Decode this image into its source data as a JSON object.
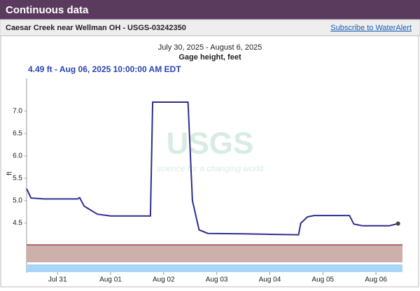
{
  "header": {
    "title": "Continuous data",
    "site": "Caesar Creek near Wellman OH - USGS-03242350",
    "link": "Subscribe to WaterAlert"
  },
  "watermark": {
    "logo": "USGS",
    "tagline": "science for a changing world"
  },
  "chart_data": {
    "type": "line",
    "title": "July 30, 2025 - August 6, 2025",
    "subtitle": "Gage height, feet",
    "annotation": "4.49 ft - Aug 06, 2025 10:00:00 AM EDT",
    "y_label": "ft",
    "color": "#2e2e8f",
    "grid": false,
    "x": [
      "2025-07-30T10:00",
      "2025-07-30T12:00",
      "2025-07-30T18:00",
      "2025-07-31T00:00",
      "2025-07-31T09:00",
      "2025-07-31T10:00",
      "2025-07-31T12:00",
      "2025-07-31T18:00",
      "2025-08-01T00:00",
      "2025-08-01T18:00",
      "2025-08-01T19:00",
      "2025-08-02T11:00",
      "2025-08-02T13:00",
      "2025-08-02T16:00",
      "2025-08-02T20:00",
      "2025-08-03T12:00",
      "2025-08-04T00:00",
      "2025-08-04T13:00",
      "2025-08-04T14:00",
      "2025-08-04T17:00",
      "2025-08-04T20:00",
      "2025-08-05T12:00",
      "2025-08-05T14:00",
      "2025-08-05T18:00",
      "2025-08-06T06:00",
      "2025-08-06T10:00"
    ],
    "values": [
      5.27,
      5.06,
      5.04,
      5.04,
      5.04,
      5.07,
      4.88,
      4.7,
      4.66,
      4.66,
      7.2,
      7.2,
      5.0,
      4.35,
      4.27,
      4.26,
      4.25,
      4.24,
      4.5,
      4.64,
      4.67,
      4.67,
      4.48,
      4.44,
      4.44,
      4.49
    ],
    "xlim": [
      "2025-07-30T10:00",
      "2025-08-06T12:00"
    ],
    "xticks": [
      {
        "value": "2025-07-31T00:00",
        "label": "Jul 31"
      },
      {
        "value": "2025-08-01T00:00",
        "label": "Aug 01"
      },
      {
        "value": "2025-08-02T00:00",
        "label": "Aug 02"
      },
      {
        "value": "2025-08-03T00:00",
        "label": "Aug 03"
      },
      {
        "value": "2025-08-04T00:00",
        "label": "Aug 04"
      },
      {
        "value": "2025-08-05T00:00",
        "label": "Aug 05"
      },
      {
        "value": "2025-08-06T00:00",
        "label": "Aug 06"
      }
    ],
    "ylim": [
      4.0,
      7.7
    ],
    "yticks": [
      4.5,
      {
        "value": 5,
        "label": "5.0"
      },
      5.5,
      {
        "value": 6,
        "label": "6.0"
      },
      6.5,
      {
        "value": 7,
        "label": "7.0"
      }
    ]
  }
}
